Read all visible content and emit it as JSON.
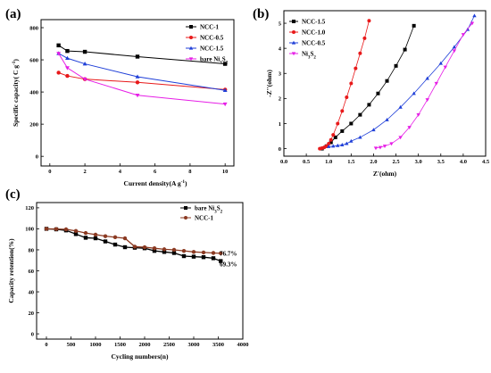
{
  "chart_data": [
    {
      "panel": "(a)",
      "type": "line",
      "xlabel": "Current density(A g-1)",
      "ylabel": "Specific capacity( C g-1)",
      "xlim": [
        -0.5,
        10.5
      ],
      "ylim": [
        -60,
        850
      ],
      "xticks": [
        0,
        2,
        4,
        6,
        8,
        10
      ],
      "yticks": [
        0,
        200,
        400,
        600,
        800
      ],
      "legend_position": "top-right",
      "series": [
        {
          "name": "NCC-1",
          "color": "#000000",
          "marker": "square",
          "x": [
            0.5,
            1,
            2,
            5,
            10
          ],
          "y": [
            690,
            655,
            650,
            620,
            575
          ]
        },
        {
          "name": "NCC-0.5",
          "color": "#e8191a",
          "marker": "circle",
          "x": [
            0.5,
            1,
            2,
            5,
            10
          ],
          "y": [
            520,
            500,
            480,
            460,
            415
          ]
        },
        {
          "name": "NCC-1.5",
          "color": "#1f3fd8",
          "marker": "triangle-up",
          "x": [
            0.5,
            1,
            2,
            5,
            10
          ],
          "y": [
            640,
            610,
            575,
            495,
            410
          ]
        },
        {
          "name": "bare Ni3S2",
          "color": "#e61ee6",
          "marker": "triangle-down",
          "x": [
            0.5,
            1,
            2,
            5,
            10
          ],
          "y": [
            640,
            550,
            480,
            380,
            325
          ]
        }
      ]
    },
    {
      "panel": "(b)",
      "type": "scatter",
      "xlabel": "Z'(ohm)",
      "ylabel": "-Z''(ohm)",
      "xlim": [
        0,
        4.5
      ],
      "ylim": [
        -0.3,
        5.5
      ],
      "xticks": [
        0.0,
        0.5,
        1.0,
        1.5,
        2.0,
        2.5,
        3.0,
        3.5,
        4.0,
        4.5
      ],
      "yticks": [
        0,
        1,
        2,
        3,
        4,
        5
      ],
      "legend_position": "top-left",
      "series": [
        {
          "name": "NCC-1.5",
          "color": "#000000",
          "marker": "square",
          "x": [
            0.85,
            0.95,
            1.05,
            1.15,
            1.3,
            1.5,
            1.7,
            1.9,
            2.1,
            2.3,
            2.5,
            2.7,
            2.9
          ],
          "y": [
            0.0,
            0.1,
            0.25,
            0.45,
            0.7,
            1.0,
            1.35,
            1.75,
            2.2,
            2.7,
            3.3,
            3.95,
            4.9
          ]
        },
        {
          "name": "NCC-1.0",
          "color": "#e8191a",
          "marker": "circle",
          "x": [
            0.8,
            0.85,
            0.9,
            0.95,
            1.0,
            1.05,
            1.1,
            1.2,
            1.3,
            1.4,
            1.5,
            1.6,
            1.7,
            1.8,
            1.9
          ],
          "y": [
            0.0,
            0.02,
            0.05,
            0.1,
            0.2,
            0.35,
            0.55,
            1.0,
            1.5,
            2.05,
            2.6,
            3.2,
            3.8,
            4.4,
            5.1
          ]
        },
        {
          "name": "NCC-0.5",
          "color": "#1f3fd8",
          "marker": "triangle-up",
          "x": [
            1.0,
            1.1,
            1.2,
            1.3,
            1.4,
            1.5,
            1.7,
            2.0,
            2.3,
            2.6,
            2.9,
            3.2,
            3.5,
            3.8,
            4.1,
            4.25
          ],
          "y": [
            0.08,
            0.1,
            0.12,
            0.15,
            0.2,
            0.3,
            0.45,
            0.75,
            1.15,
            1.65,
            2.2,
            2.8,
            3.4,
            4.05,
            4.75,
            5.3
          ]
        },
        {
          "name": "Ni3S2",
          "color": "#e61ee6",
          "marker": "triangle-down",
          "x": [
            2.05,
            2.15,
            2.25,
            2.4,
            2.6,
            2.8,
            3.0,
            3.2,
            3.4,
            3.6,
            3.8,
            4.0,
            4.2
          ],
          "y": [
            0.02,
            0.05,
            0.1,
            0.2,
            0.45,
            0.85,
            1.35,
            1.95,
            2.6,
            3.25,
            3.9,
            4.55,
            5.0
          ]
        }
      ]
    },
    {
      "panel": "(c)",
      "type": "line",
      "xlabel": "Cycling numbers(n)",
      "ylabel": "Capacity retention(%)",
      "xlim": [
        -200,
        4000
      ],
      "ylim": [
        -5,
        125
      ],
      "xticks": [
        0,
        500,
        1000,
        1500,
        2000,
        2500,
        3000,
        3500,
        4000
      ],
      "yticks": [
        0,
        20,
        40,
        60,
        80,
        100,
        120
      ],
      "legend_position": "top-right",
      "annotations": [
        {
          "text": "76.7%",
          "x": 3530,
          "y": 76.7,
          "color": "#c0504d"
        },
        {
          "text": "69.3%",
          "x": 3530,
          "y": 66.5,
          "color": "#000000"
        }
      ],
      "series": [
        {
          "name": "bare Ni3S2",
          "color": "#000000",
          "marker": "square",
          "x": [
            0,
            200,
            400,
            600,
            800,
            1000,
            1200,
            1400,
            1600,
            1800,
            2000,
            2200,
            2400,
            2600,
            2800,
            3000,
            3200,
            3400,
            3550
          ],
          "y": [
            100,
            99.5,
            98.5,
            95,
            91.5,
            91,
            88,
            85,
            82.5,
            82,
            81.5,
            79,
            78,
            77,
            74,
            73.5,
            73,
            72,
            69.3
          ]
        },
        {
          "name": "NCC-1",
          "color": "#8b3a22",
          "marker": "circle",
          "x": [
            0,
            200,
            400,
            600,
            800,
            1000,
            1200,
            1400,
            1600,
            1800,
            2000,
            2200,
            2400,
            2600,
            2800,
            3000,
            3200,
            3400,
            3550
          ],
          "y": [
            100,
            99.8,
            99.5,
            98,
            96,
            94.5,
            93,
            92,
            91,
            83,
            82.5,
            81.5,
            80.5,
            80,
            79,
            78,
            77.5,
            77,
            76.7
          ]
        }
      ]
    }
  ]
}
